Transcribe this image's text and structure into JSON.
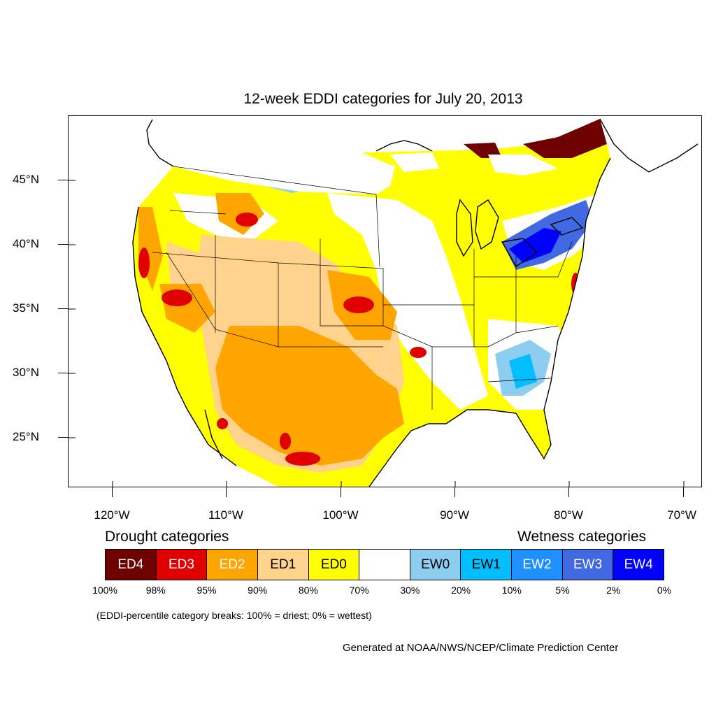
{
  "title": "12-week EDDI categories for July 20, 2013",
  "y_axis_labels": [
    "45°N",
    "40°N",
    "35°N",
    "30°N",
    "25°N"
  ],
  "x_axis_labels": [
    "120°W",
    "110°W",
    "100°W",
    "90°W",
    "80°W",
    "70°W"
  ],
  "legend": {
    "drought_heading": "Drought categories",
    "wetness_heading": "Wetness categories",
    "categories": [
      {
        "label": "ED4",
        "color": "#6e0000",
        "text_color": "#ffffff"
      },
      {
        "label": "ED3",
        "color": "#e10000",
        "text_color": "#ffffff"
      },
      {
        "label": "ED2",
        "color": "#ffa500",
        "text_color": "#ffffff"
      },
      {
        "label": "ED1",
        "color": "#ffd38c",
        "text_color": "#000000"
      },
      {
        "label": "ED0",
        "color": "#ffff00",
        "text_color": "#000000"
      },
      {
        "label": "",
        "color": "#ffffff",
        "text_color": "#000000"
      },
      {
        "label": "EW0",
        "color": "#8ccdf0",
        "text_color": "#000000"
      },
      {
        "label": "EW1",
        "color": "#00beff",
        "text_color": "#000000"
      },
      {
        "label": "EW2",
        "color": "#1e90ff",
        "text_color": "#ffffff"
      },
      {
        "label": "EW3",
        "color": "#4169e1",
        "text_color": "#ffffff"
      },
      {
        "label": "EW4",
        "color": "#0000ff",
        "text_color": "#ffffff"
      }
    ],
    "percent_breaks": [
      "100%",
      "98%",
      "95%",
      "90%",
      "80%",
      "70%",
      "30%",
      "20%",
      "10%",
      "5%",
      "2%",
      "0%"
    ]
  },
  "note": "(EDDI-percentile category breaks: 100% = driest; 0% = wettest)",
  "credit": "Generated at NOAA/NWS/NCEP/Climate Prediction Center"
}
